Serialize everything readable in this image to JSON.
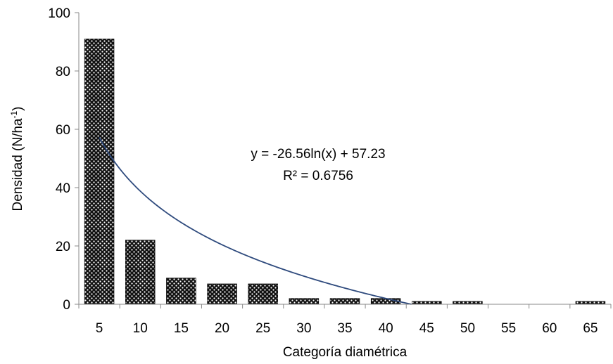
{
  "chart_data": {
    "type": "bar",
    "categories": [
      "5",
      "10",
      "15",
      "20",
      "25",
      "30",
      "35",
      "40",
      "45",
      "50",
      "55",
      "60",
      "65"
    ],
    "values": [
      91,
      22,
      9,
      7,
      7,
      2,
      2,
      2,
      1,
      1,
      0,
      0,
      1
    ],
    "xlabel": "Categoría diamétrica",
    "ylabel": "Densidad (N/ha",
    "ylabel_sup": "-1",
    "ylabel_close": ")",
    "ylim": [
      0,
      100
    ],
    "yticks": [
      0,
      20,
      40,
      60,
      80,
      100
    ],
    "bar_pattern": "black-white checkered",
    "trendline": {
      "type": "logarithmic",
      "a": -26.56,
      "b": 57.23,
      "x_start": 1,
      "color": "#2e4a7d",
      "equation": "y = -26.56ln(x) + 57.23",
      "r2": "R² = 0.6756"
    },
    "grid": false,
    "legend": "none"
  }
}
